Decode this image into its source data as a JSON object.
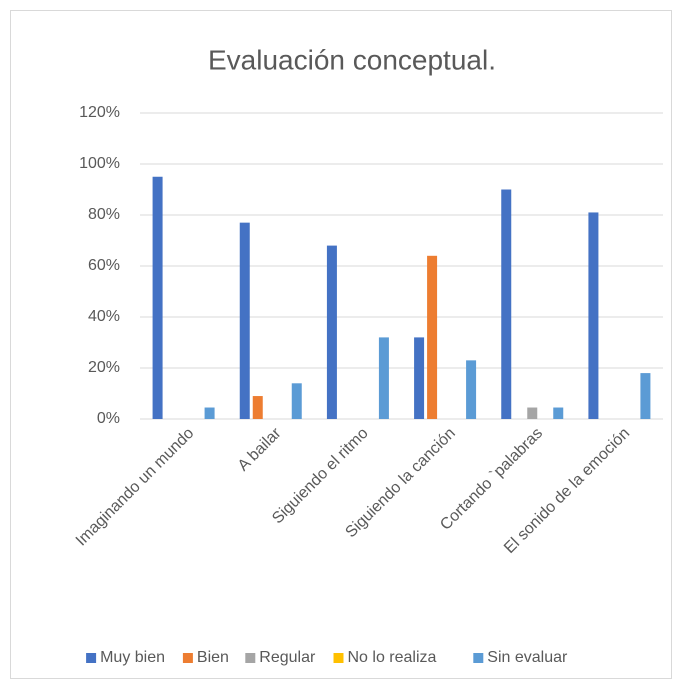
{
  "chart_data": {
    "type": "bar",
    "title": "Evaluación conceptual.",
    "categories": [
      "Imaginando un mundo",
      "A bailar",
      "Siguiendo el ritmo",
      "Siguiendo la canción",
      "Cortando `palabras",
      "El sonido de la emoción"
    ],
    "series": [
      {
        "name": "Muy bien",
        "color": "#4472c4",
        "values": [
          95,
          77,
          68,
          32,
          90,
          81
        ]
      },
      {
        "name": "Bien",
        "color": "#ed7d31",
        "values": [
          0,
          9,
          0,
          64,
          0,
          0
        ]
      },
      {
        "name": "Regular",
        "color": "#a5a5a5",
        "values": [
          0,
          0,
          0,
          0,
          4.5,
          0
        ]
      },
      {
        "name": "No lo realiza",
        "color": "#ffc000",
        "values": [
          0,
          0,
          0,
          0,
          0,
          0
        ]
      },
      {
        "name": "Sin evaluar",
        "color": "#5b9bd5",
        "values": [
          4.5,
          14,
          32,
          23,
          4.5,
          18
        ]
      }
    ],
    "ylim": [
      0,
      120
    ],
    "yticks": [
      {
        "value": 0,
        "label": "0%"
      },
      {
        "value": 20,
        "label": "20%"
      },
      {
        "value": 40,
        "label": "40%"
      },
      {
        "value": 60,
        "label": "60%"
      },
      {
        "value": 80,
        "label": "80%"
      },
      {
        "value": 100,
        "label": "100%"
      },
      {
        "value": 120,
        "label": "120%"
      }
    ],
    "grid": true,
    "legend": "bottom"
  }
}
